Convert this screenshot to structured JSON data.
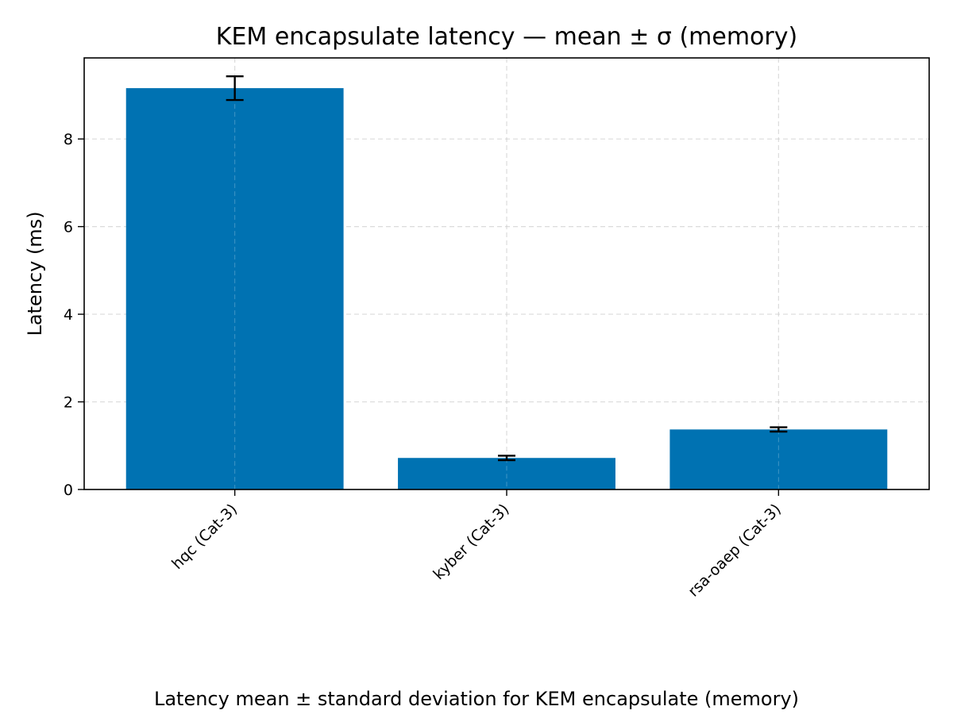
{
  "chart_data": {
    "type": "bar",
    "title": "KEM encapsulate latency — mean ± σ (memory)",
    "xlabel": "",
    "ylabel": "Latency (ms)",
    "categories": [
      "hqc (Cat-3)",
      "kyber (Cat-3)",
      "rsa-oaep (Cat-3)"
    ],
    "values": [
      9.16,
      0.72,
      1.37
    ],
    "errors": [
      0.27,
      0.05,
      0.05
    ],
    "ylim": [
      0,
      9.85
    ],
    "yticks": [
      0,
      2,
      4,
      6,
      8
    ],
    "grid": true,
    "legend": "none",
    "caption": "Latency mean ± standard deviation for KEM encapsulate (memory)",
    "colors": {
      "bar": "#0072b2",
      "error_bar": "#000000",
      "grid": "#cccccc",
      "axes": "#000000"
    }
  }
}
